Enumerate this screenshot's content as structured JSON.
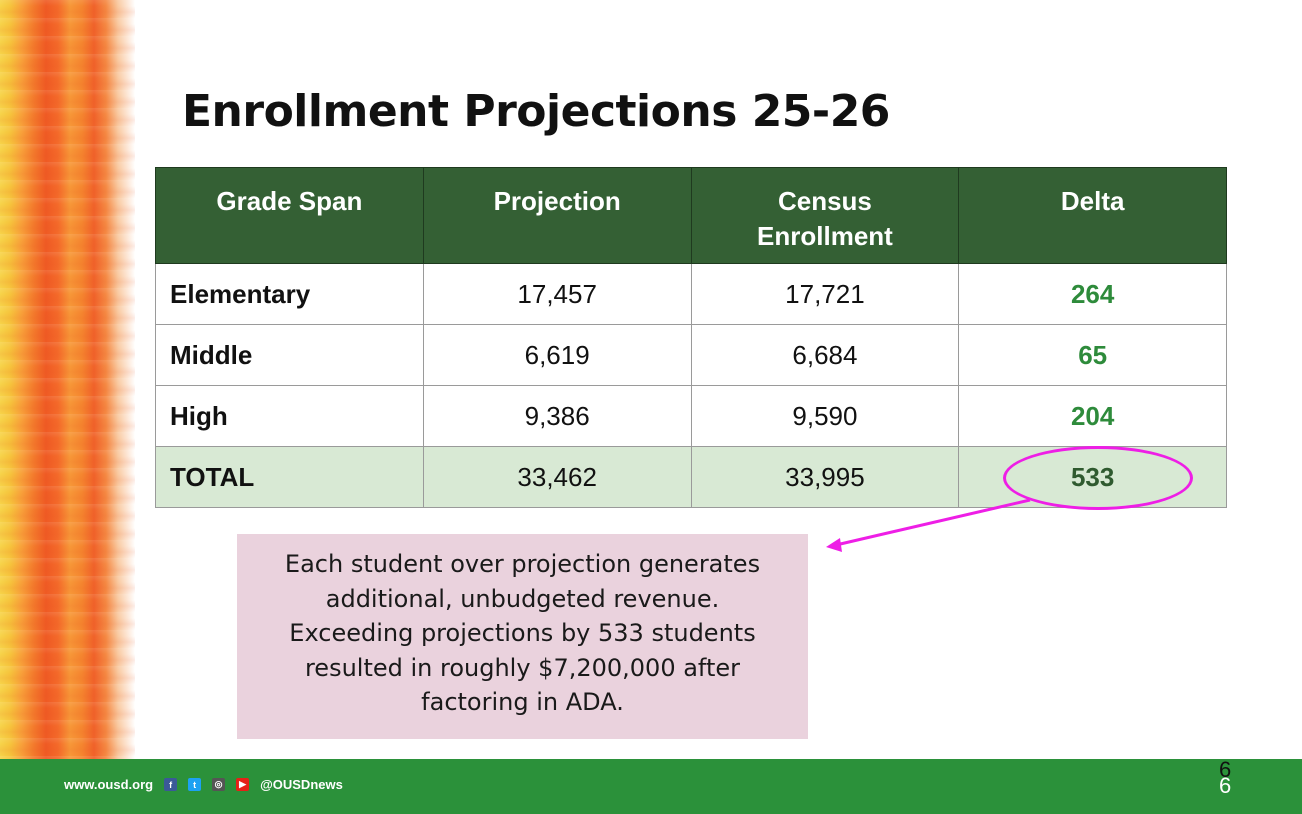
{
  "slide": {
    "title": "Enrollment Projections 25-26",
    "page_number": "6"
  },
  "table": {
    "headers": [
      "Grade Span",
      "Projection",
      "Census\nEnrollment",
      "Delta"
    ],
    "rows": [
      {
        "grade": "Elementary",
        "projection": "17,457",
        "census": "17,721",
        "delta": "264"
      },
      {
        "grade": "Middle",
        "projection": "6,619",
        "census": "6,684",
        "delta": "65"
      },
      {
        "grade": "High",
        "projection": "9,386",
        "census": "9,590",
        "delta": "204"
      },
      {
        "grade": "TOTAL",
        "projection": "33,462",
        "census": "33,995",
        "delta": "533"
      }
    ]
  },
  "note": {
    "lines": [
      "Each student over projection generates",
      "additional, unbudgeted revenue.",
      "Exceeding projections by 533 students",
      "resulted in roughly $7,200,000 after",
      "factoring in ADA."
    ]
  },
  "footer": {
    "website": "www.ousd.org",
    "icons": [
      "facebook-icon",
      "twitter-icon",
      "instagram-icon",
      "youtube-icon"
    ],
    "handle": "@OUSDnews"
  },
  "colors": {
    "header_green": "#346034",
    "delta_green": "#2e8b3b",
    "total_row_bg": "#d8e9d4",
    "highlight_magenta": "#ee1ee6",
    "note_bg": "#ead2dd",
    "footer_green": "#2b913a"
  }
}
